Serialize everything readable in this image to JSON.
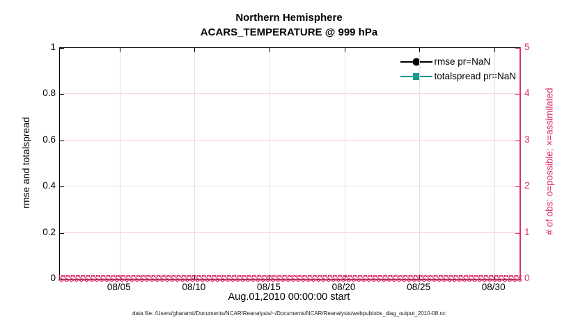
{
  "figure": {
    "title_line1": "Northern Hemisphere",
    "title_line2": "ACARS_TEMPERATURE @ 999 hPa",
    "xlabel": "Aug.01,2010 00:00:00 start",
    "caption": "data file: /Users/gharamti/Documents/NCAR/Reanalysis/~/Documents/NCAR/Reanalysis/webpub/obs_diag_output_2010-08.nc"
  },
  "axes": {
    "left": {
      "label": "rmse and totalspread",
      "ticks": [
        "0",
        "0.2",
        "0.4",
        "0.6",
        "0.8",
        "1"
      ]
    },
    "right": {
      "label": "# of obs: o=possible; ×=assimilated",
      "ticks": [
        "0",
        "1",
        "2",
        "3",
        "4",
        "5"
      ]
    },
    "x": {
      "ticks": [
        "08/05",
        "08/10",
        "08/15",
        "08/20",
        "08/25",
        "08/30"
      ]
    }
  },
  "legend": {
    "items": [
      {
        "label": "rmse pr=NaN",
        "marker": "circle",
        "color": "#000000"
      },
      {
        "label": "totalspread pr=NaN",
        "marker": "square",
        "color": "#17968f"
      }
    ]
  },
  "obs_markers": {
    "possible_glyph": "o",
    "assimilated_glyph": "×",
    "color": "#e02e6d"
  },
  "colors": {
    "right_axis": "#e02e6d",
    "h_grid": "#f7d4e2",
    "v_grid": "#e2e2e2",
    "teal": "#17968f",
    "black": "#000000"
  },
  "chart_data": {
    "type": "line",
    "title": "Northern Hemisphere",
    "subtitle": "ACARS_TEMPERATURE @ 999 hPa",
    "xlabel": "Aug.01,2010 00:00:00 start",
    "ylabel_left": "rmse and totalspread",
    "ylabel_right": "# of obs: o=possible; ×=assimilated",
    "x_ticks": [
      "08/05",
      "08/10",
      "08/15",
      "08/20",
      "08/25",
      "08/30"
    ],
    "xlim": [
      "2010-08-01 00:00",
      "2010-08-31 18:00"
    ],
    "ylim_left": [
      0,
      1
    ],
    "ylim_right": [
      0,
      5
    ],
    "grid": true,
    "legend_position": "upper right inside, no box",
    "series": [
      {
        "name": "rmse pr=NaN",
        "axis": "left",
        "values": "NaN (no curve drawn)"
      },
      {
        "name": "totalspread pr=NaN",
        "axis": "left",
        "values": "NaN (no curve drawn)"
      },
      {
        "name": "# of obs possible (o markers)",
        "axis": "right",
        "value_at_all_times": 0
      },
      {
        "name": "# of obs assimilated (× markers)",
        "axis": "right",
        "value_at_all_times": 0
      }
    ],
    "annotation": "dense pink o/× marker band hugging y=0 across the full time range"
  }
}
